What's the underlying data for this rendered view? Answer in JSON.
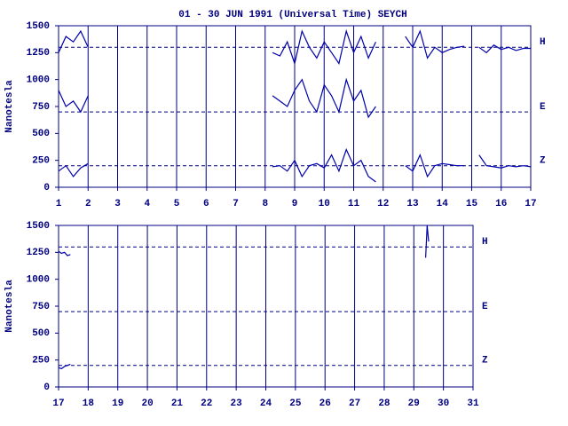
{
  "chart_data": [
    {
      "type": "line",
      "title": "01 - 30 JUN 1991 (Universal Time) SEYCH",
      "y_label": "Nanotesla",
      "x": [
        1,
        1.25,
        1.5,
        1.75,
        2,
        2.25,
        2.5,
        2.75,
        3,
        3.25,
        3.5,
        3.75,
        4,
        4.25,
        4.5,
        4.75,
        5,
        5.25,
        5.5,
        5.75,
        6,
        6.25,
        6.5,
        6.75,
        7,
        7.25,
        7.5,
        7.75,
        8,
        8.25,
        8.5,
        8.75,
        9,
        9.25,
        9.5,
        9.75,
        10,
        10.25,
        10.5,
        10.75,
        11,
        11.25,
        11.5,
        11.75,
        12,
        12.25,
        12.5,
        12.75,
        13,
        13.25,
        13.5,
        13.75,
        14,
        14.25,
        14.5,
        14.75,
        15,
        15.25,
        15.5,
        15.75,
        16,
        16.25,
        16.5,
        16.75,
        17
      ],
      "xlim": [
        1,
        17
      ],
      "xticks": [
        1,
        2,
        3,
        4,
        5,
        6,
        7,
        8,
        9,
        10,
        11,
        12,
        13,
        14,
        15,
        16,
        17
      ],
      "ylim": [
        0,
        1500
      ],
      "yticks": [
        0,
        250,
        500,
        750,
        1000,
        1250,
        1500
      ],
      "baselines": [
        {
          "value": 1300,
          "label": "H"
        },
        {
          "value": 700,
          "label": "E"
        },
        {
          "value": 200,
          "label": "Z"
        }
      ],
      "series": [
        {
          "color": "#0000aa",
          "values": [
            1250,
            1400,
            1350,
            1450,
            1300,
            null,
            null,
            null,
            null,
            null,
            null,
            null,
            null,
            null,
            null,
            null,
            null,
            null,
            null,
            null,
            null,
            null,
            null,
            null,
            null,
            null,
            null,
            null,
            null,
            1250,
            1220,
            1350,
            1150,
            1450,
            1300,
            1200,
            1350,
            1250,
            1150,
            1450,
            1250,
            1400,
            1200,
            1350,
            null,
            null,
            null,
            1400,
            1300,
            1450,
            1200,
            1300,
            1250,
            1280,
            1300,
            1310,
            null,
            1300,
            1250,
            1320,
            1280,
            1300,
            1270,
            1290,
            1290
          ]
        },
        {
          "color": "#0000aa",
          "values": [
            900,
            750,
            800,
            700,
            850,
            null,
            null,
            null,
            null,
            null,
            null,
            null,
            null,
            null,
            null,
            null,
            null,
            null,
            null,
            null,
            null,
            null,
            null,
            null,
            null,
            null,
            null,
            null,
            null,
            850,
            800,
            750,
            900,
            1000,
            800,
            700,
            950,
            850,
            700,
            1000,
            800,
            900,
            650,
            750,
            null,
            null,
            null,
            null,
            null,
            null,
            null,
            null,
            null,
            null,
            null,
            null,
            null,
            null,
            null,
            null,
            null,
            null,
            null,
            null,
            null
          ]
        },
        {
          "color": "#0000aa",
          "values": [
            150,
            200,
            100,
            180,
            220,
            null,
            null,
            null,
            null,
            null,
            null,
            null,
            null,
            null,
            null,
            null,
            null,
            null,
            null,
            null,
            null,
            null,
            null,
            null,
            null,
            null,
            null,
            null,
            null,
            190,
            200,
            150,
            250,
            100,
            200,
            220,
            180,
            300,
            150,
            350,
            200,
            250,
            100,
            50,
            null,
            null,
            null,
            200,
            150,
            300,
            100,
            200,
            220,
            210,
            200,
            200,
            null,
            300,
            200,
            190,
            180,
            200,
            190,
            200,
            190
          ]
        }
      ]
    },
    {
      "type": "line",
      "y_label": "Nanotesla",
      "x": [
        17,
        17.1,
        17.2,
        17.3,
        17.4,
        23,
        29.4,
        29.45,
        29.5
      ],
      "xlim": [
        17,
        31
      ],
      "xticks": [
        17,
        18,
        19,
        20,
        21,
        22,
        23,
        24,
        25,
        26,
        27,
        28,
        29,
        30,
        31
      ],
      "ylim": [
        0,
        1500
      ],
      "yticks": [
        0,
        250,
        500,
        750,
        1000,
        1250,
        1500
      ],
      "baselines": [
        {
          "value": 1300,
          "label": "H"
        },
        {
          "value": 700,
          "label": "E"
        },
        {
          "value": 200,
          "label": "Z"
        }
      ],
      "series": [
        {
          "color": "#0000aa",
          "values": [
            1260,
            1240,
            1250,
            1220,
            1230,
            null,
            1200,
            1500,
            1350
          ]
        },
        {
          "color": "#0000aa",
          "values": [
            null,
            null,
            null,
            null,
            null,
            null,
            null,
            null,
            null
          ]
        },
        {
          "color": "#0000aa",
          "values": [
            180,
            170,
            190,
            200,
            210,
            null,
            null,
            null,
            null
          ]
        }
      ]
    }
  ]
}
